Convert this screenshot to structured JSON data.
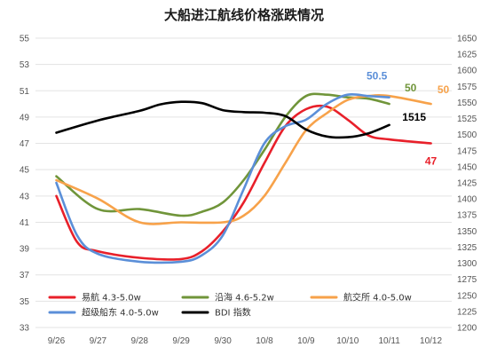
{
  "chart_data": {
    "type": "line",
    "title": "大船进江航线价格涨跌情况",
    "categories": [
      "9/26",
      "9/27",
      "9/28",
      "9/29",
      "9/30",
      "10/8",
      "10/9",
      "10/10",
      "10/11",
      "10/12"
    ],
    "y_left": {
      "min": 33,
      "max": 55,
      "ticks": [
        "33",
        "35",
        "37",
        "39",
        "41",
        "43",
        "45",
        "47",
        "49",
        "51",
        "53",
        "55"
      ]
    },
    "y_right": {
      "min": 1200,
      "max": 1650,
      "ticks": [
        "1200",
        "1225",
        "1250",
        "1275",
        "1300",
        "1325",
        "1350",
        "1375",
        "1400",
        "1425",
        "1450",
        "1475",
        "1500",
        "1525",
        "1550",
        "1575",
        "1600",
        "1625",
        "1650"
      ]
    },
    "grid": true,
    "legend_position": "bottom",
    "series": [
      {
        "name": "易航 4.3-5.0w",
        "axis": "left",
        "color": "#e8202a",
        "x": [
          0,
          0.5,
          1,
          2,
          3,
          3.5,
          4,
          4.5,
          5,
          5.5,
          6,
          6.5,
          7,
          7.5,
          8,
          9
        ],
        "y": [
          43,
          39.5,
          38.8,
          38.3,
          38.2,
          38.8,
          40.3,
          42.5,
          45.5,
          48.3,
          49.6,
          49.8,
          48.8,
          47.6,
          47.3,
          47
        ],
        "end_label": "47"
      },
      {
        "name": "沿海 4.6-5.2w",
        "axis": "left",
        "color": "#70953a",
        "x": [
          0,
          1,
          2,
          3,
          3.5,
          4,
          4.5,
          5,
          5.5,
          6,
          6.5,
          7,
          7.5,
          8
        ],
        "y": [
          44.5,
          42,
          42,
          41.5,
          41.8,
          42.5,
          44.2,
          46.5,
          49,
          50.6,
          50.7,
          50.5,
          50.4,
          50
        ],
        "end_label": "50"
      },
      {
        "name": "航交所 4.0-5.0w",
        "axis": "left",
        "color": "#f7a24a",
        "x": [
          0,
          1,
          2,
          3,
          4,
          4.5,
          5,
          5.5,
          6,
          6.5,
          7,
          7.5,
          8,
          9
        ],
        "y": [
          44.2,
          42.8,
          41,
          41,
          41,
          41.5,
          43,
          45.5,
          48,
          49.3,
          50.3,
          50.6,
          50.6,
          50
        ],
        "end_label": "50"
      },
      {
        "name": "超级船东 4.0-5.0w",
        "axis": "left",
        "color": "#5b8fd8",
        "x": [
          0,
          0.5,
          1,
          2,
          3,
          3.5,
          4,
          4.5,
          5,
          5.5,
          6,
          6.5,
          7,
          7.5,
          8
        ],
        "y": [
          44,
          40,
          38.6,
          38,
          38,
          38.5,
          40,
          43.5,
          47,
          48.3,
          48.8,
          50,
          50.7,
          50.6,
          50.5
        ],
        "end_label": "50.5"
      },
      {
        "name": "BDI 指数",
        "axis": "right",
        "color": "#000000",
        "x": [
          0,
          1,
          2,
          2.5,
          3,
          3.5,
          4,
          4.5,
          5,
          5.5,
          6,
          6.5,
          7,
          7.5,
          8
        ],
        "y": [
          1503,
          1522,
          1537,
          1547,
          1551,
          1549,
          1538,
          1535,
          1534,
          1529,
          1508,
          1497,
          1496,
          1502,
          1515
        ],
        "end_label": "1515"
      }
    ]
  }
}
